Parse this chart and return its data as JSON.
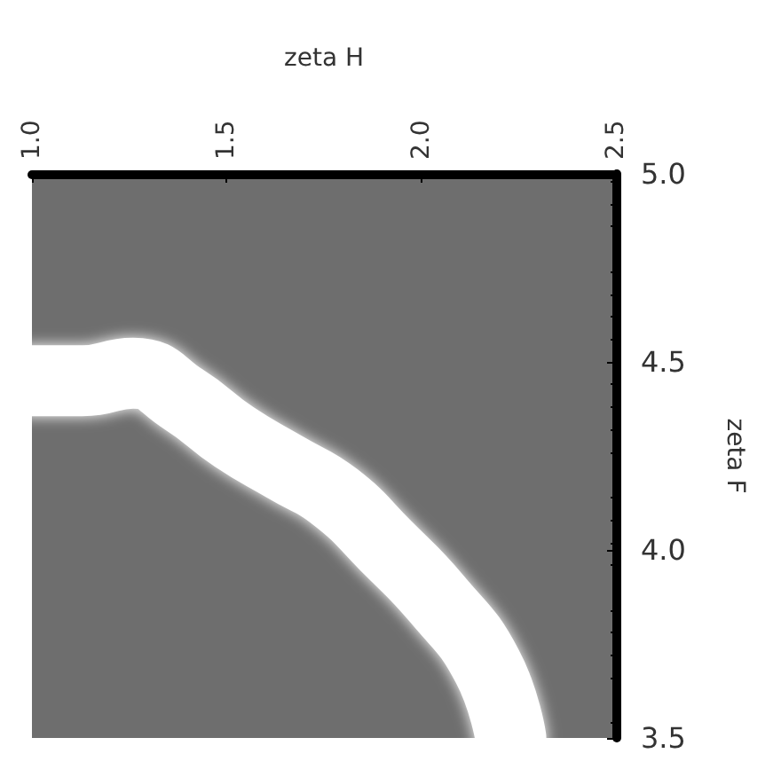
{
  "chart_data": {
    "type": "line",
    "xlabel": "zeta H",
    "ylabel": "zeta F",
    "x": [
      1.0,
      1.13,
      1.26,
      1.39,
      1.52,
      1.65,
      1.78,
      1.91,
      2.04,
      2.17,
      2.23
    ],
    "series": [
      {
        "color": "#ffffff",
        "values": [
          4.45,
          4.45,
          4.47,
          4.4,
          4.3,
          4.22,
          4.14,
          4.01,
          3.87,
          3.69,
          3.5
        ]
      }
    ],
    "xlim": [
      1.0,
      2.5
    ],
    "xticks": [
      {
        "value": 1,
        "label": "1.0"
      },
      1.5,
      {
        "value": 2,
        "label": "2.0"
      },
      2.5
    ],
    "ylim": [
      3.5,
      5.0
    ],
    "yticks": [
      3.5,
      {
        "value": 4,
        "label": "4.0"
      },
      4.5,
      {
        "value": 5,
        "label": "5.0"
      }
    ],
    "grid": false,
    "line_style": "solid"
  }
}
